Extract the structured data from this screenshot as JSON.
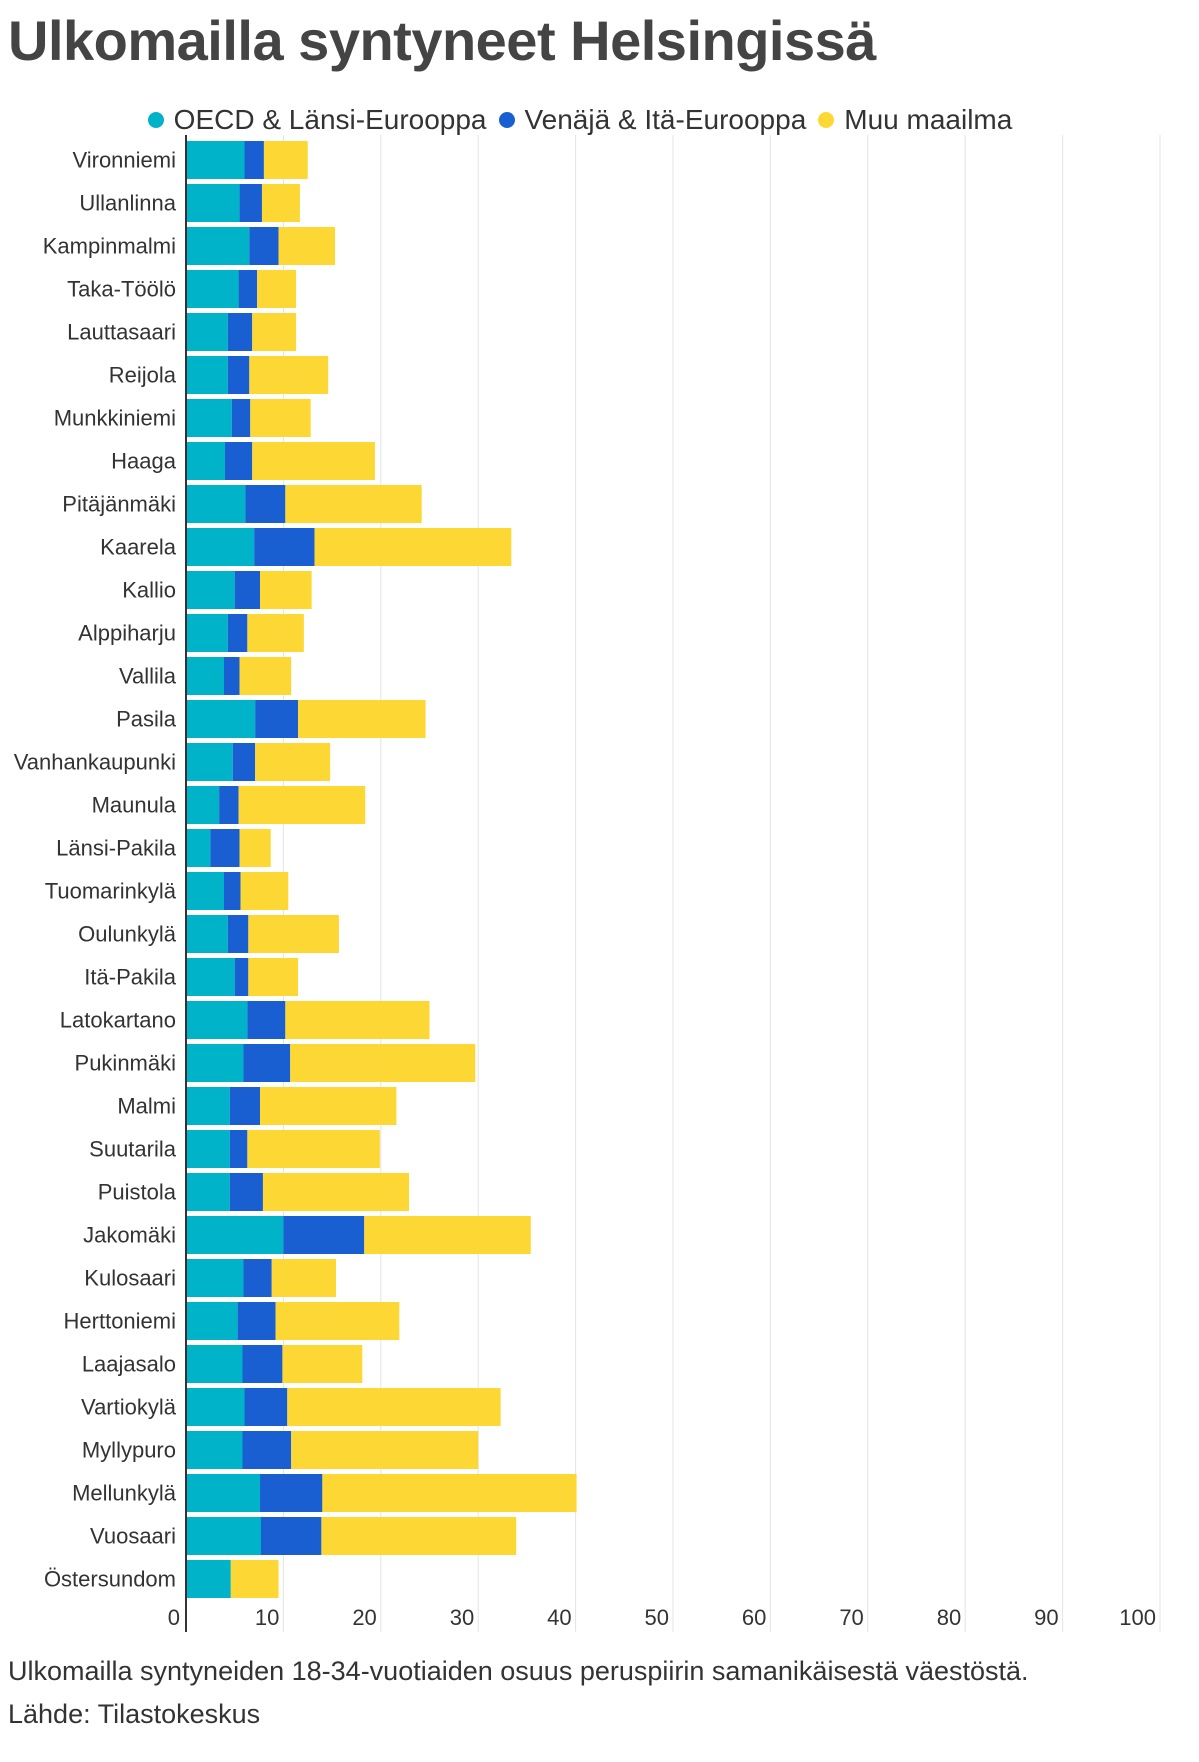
{
  "title": "Ulkomailla syntyneet Helsingissä",
  "caption": {
    "description": "Ulkomailla syntyneiden 18-34-vuotiaiden osuus peruspiirin samanikäisestä väestöstä.",
    "source": "Lähde: Tilastokeskus"
  },
  "colors": {
    "oecd": "#00b3c8",
    "east": "#1a5fd1",
    "other": "#fdd835",
    "grid": "#e3e3e3",
    "text": "#333333",
    "title": "#444444"
  },
  "chart_data": {
    "type": "bar",
    "orientation": "horizontal",
    "stacked": true,
    "title": "Ulkomailla syntyneet Helsingissä",
    "xlabel": "",
    "ylabel": "",
    "xlim": [
      0,
      100
    ],
    "xticks": [
      0,
      10,
      20,
      30,
      40,
      50,
      60,
      70,
      80,
      90,
      100
    ],
    "grid": true,
    "legend_position": "top",
    "categories": [
      "Vironniemi",
      "Ullanlinna",
      "Kampinmalmi",
      "Taka-Töölö",
      "Lauttasaari",
      "Reijola",
      "Munkkiniemi",
      "Haaga",
      "Pitäjänmäki",
      "Kaarela",
      "Kallio",
      "Alppiharju",
      "Vallila",
      "Pasila",
      "Vanhankaupunki",
      "Maunula",
      "Länsi-Pakila",
      "Tuomarinkylä",
      "Oulunkylä",
      "Itä-Pakila",
      "Latokartano",
      "Pukinmäki",
      "Malmi",
      "Suutarila",
      "Puistola",
      "Jakomäki",
      "Kulosaari",
      "Herttoniemi",
      "Laajasalo",
      "Vartiokylä",
      "Myllypuro",
      "Mellunkylä",
      "Vuosaari",
      "Östersundom"
    ],
    "series": [
      {
        "name": "OECD & Länsi-Eurooppa",
        "color": "#00b3c8",
        "values": [
          6.0,
          5.5,
          6.5,
          5.4,
          4.3,
          4.3,
          4.7,
          4.0,
          6.1,
          7.0,
          5.0,
          4.3,
          3.9,
          7.1,
          4.8,
          3.4,
          2.5,
          3.9,
          4.3,
          5.0,
          6.3,
          5.9,
          4.5,
          4.5,
          4.5,
          10.0,
          5.9,
          5.3,
          5.8,
          6.0,
          5.8,
          7.6,
          7.7,
          4.6
        ],
        "stack_totals": null
      },
      {
        "name": "Venäjä & Itä-Eurooppa",
        "color": "#1a5fd1",
        "values": [
          2.0,
          2.3,
          3.0,
          1.9,
          2.5,
          2.2,
          1.9,
          2.8,
          4.1,
          6.2,
          2.6,
          2.0,
          1.6,
          4.4,
          2.3,
          2.0,
          3.0,
          1.7,
          2.1,
          1.4,
          3.9,
          4.8,
          3.1,
          1.8,
          3.4,
          8.3,
          2.9,
          3.9,
          4.1,
          4.4,
          5.0,
          6.4,
          6.2,
          0.0
        ],
        "stack_totals": null
      },
      {
        "name": "Muu maailma",
        "color": "#fdd835",
        "values": [
          4.5,
          3.9,
          5.8,
          4.0,
          4.5,
          8.1,
          6.2,
          12.6,
          14.0,
          20.2,
          5.3,
          5.8,
          5.3,
          13.1,
          7.7,
          13.0,
          3.2,
          4.9,
          9.3,
          5.1,
          14.8,
          19.0,
          14.0,
          13.6,
          15.0,
          17.1,
          6.6,
          12.7,
          8.2,
          21.9,
          19.2,
          26.1,
          20.0,
          4.9
        ]
      }
    ]
  }
}
